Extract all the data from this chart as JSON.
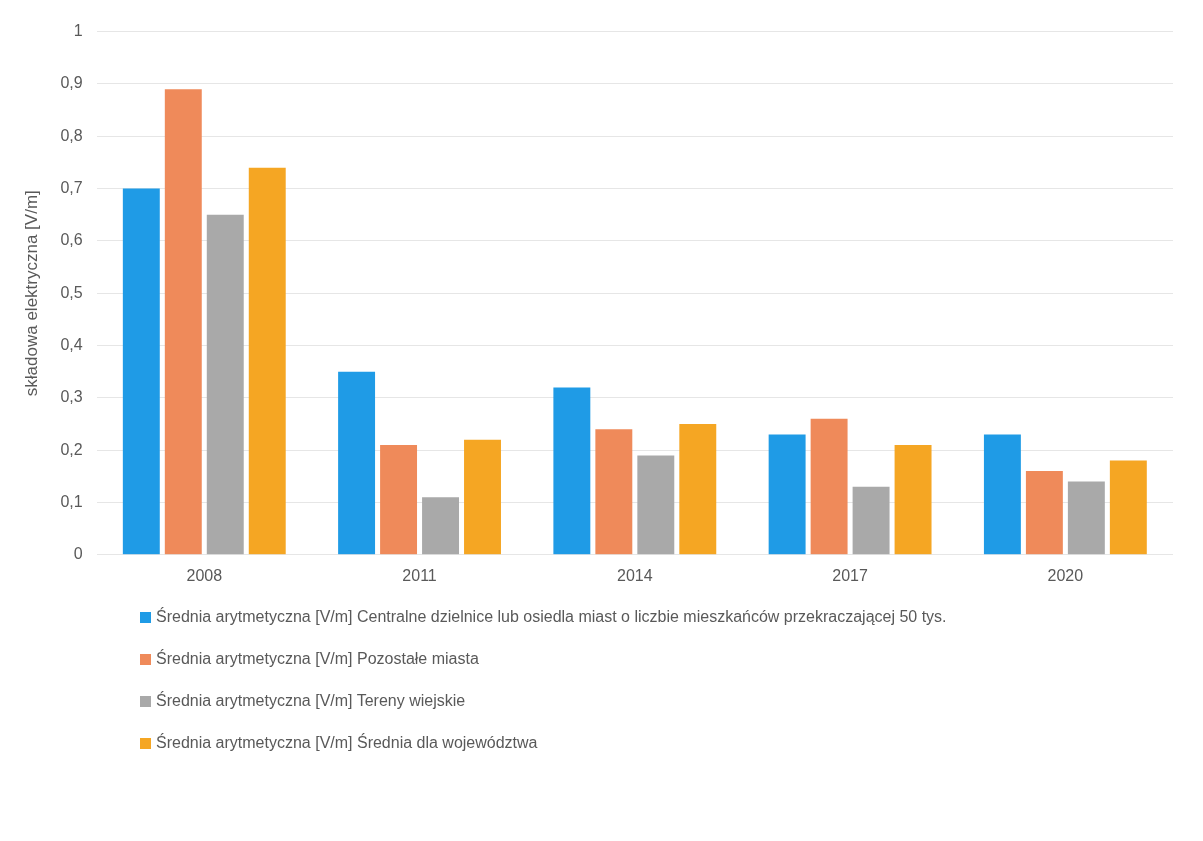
{
  "chart_data": {
    "type": "bar",
    "ylabel": "składowa elektryczna [V/m]",
    "categories": [
      "2008",
      "2011",
      "2014",
      "2017",
      "2020"
    ],
    "series": [
      {
        "name": "Średnia arytmetyczna [V/m] Centralne dzielnice lub osiedla miast o liczbie mieszkańców przekraczającej 50 tys.",
        "color": "#1f9be6",
        "values": [
          0.7,
          0.35,
          0.32,
          0.23,
          0.23
        ]
      },
      {
        "name": "Średnia arytmetyczna [V/m] Pozostałe miasta",
        "color": "#ef8a5a",
        "values": [
          0.89,
          0.21,
          0.24,
          0.26,
          0.16
        ]
      },
      {
        "name": "Średnia arytmetyczna [V/m] Tereny wiejskie",
        "color": "#a9a9a9",
        "values": [
          0.65,
          0.11,
          0.19,
          0.13,
          0.14
        ]
      },
      {
        "name": "Średnia arytmetyczna [V/m] Średnia dla województwa",
        "color": "#f5a623",
        "values": [
          0.74,
          0.22,
          0.25,
          0.21,
          0.18
        ]
      }
    ],
    "ylim": [
      0,
      1
    ],
    "yticks": [
      0,
      {
        "value": 0.1,
        "label": "0,1"
      },
      {
        "value": 0.2,
        "label": "0,2"
      },
      {
        "value": 0.3,
        "label": "0,3"
      },
      {
        "value": 0.4,
        "label": "0,4"
      },
      {
        "value": 0.5,
        "label": "0,5"
      },
      {
        "value": 0.6,
        "label": "0,6"
      },
      {
        "value": 0.7,
        "label": "0,7"
      },
      {
        "value": 0.8,
        "label": "0,8"
      },
      {
        "value": 0.9,
        "label": "0,9"
      },
      1
    ],
    "grid": "y",
    "legend": "bottom"
  }
}
